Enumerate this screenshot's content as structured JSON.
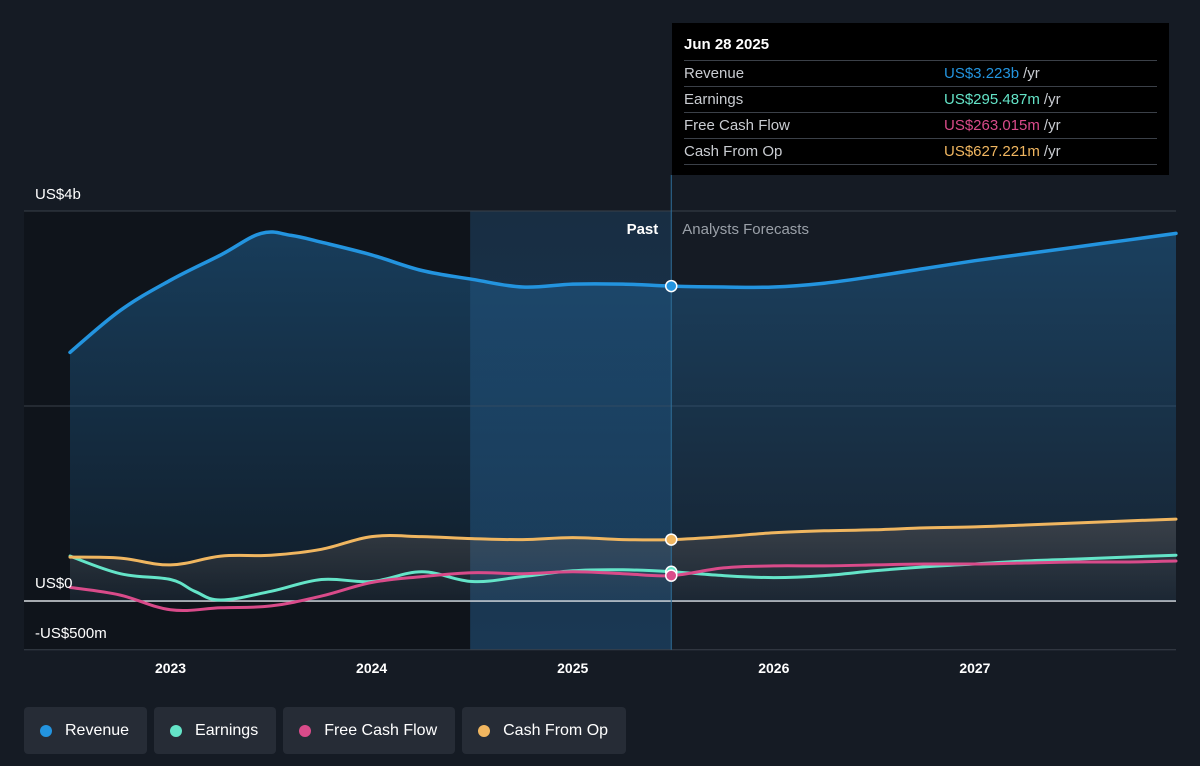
{
  "colors": {
    "background": "#151b24",
    "revenue": "#2394df",
    "earnings": "#64e4c8",
    "free_cash_flow": "#d94b8a",
    "cash_from_op": "#f0b660",
    "past_highlight": "#1b3d5c"
  },
  "tooltip": {
    "date": "Jun 28 2025",
    "rows": [
      {
        "name": "Revenue",
        "value": "US$3.223b",
        "unit": "/yr"
      },
      {
        "name": "Earnings",
        "value": "US$295.487m",
        "unit": "/yr"
      },
      {
        "name": "Free Cash Flow",
        "value": "US$263.015m",
        "unit": "/yr"
      },
      {
        "name": "Cash From Op",
        "value": "US$627.221m",
        "unit": "/yr"
      }
    ]
  },
  "legend": [
    {
      "label": "Revenue",
      "color": "#2394df"
    },
    {
      "label": "Earnings",
      "color": "#64e4c8"
    },
    {
      "label": "Free Cash Flow",
      "color": "#d94b8a"
    },
    {
      "label": "Cash From Op",
      "color": "#f0b660"
    }
  ],
  "chart_data": {
    "type": "line",
    "title": "",
    "xlabel": "",
    "ylabel": "",
    "y_unit": "US$ billions",
    "ylim": [
      -0.5,
      4.0
    ],
    "xlim": [
      2022.77,
      2027.99
    ],
    "y_tick_labels": [
      {
        "value": 4.0,
        "label": "US$4b"
      },
      {
        "value": 0.0,
        "label": "US$0"
      },
      {
        "value": -0.5,
        "label": "-US$500m"
      }
    ],
    "gridlines": [
      4.0,
      2.0,
      0.0,
      -0.5
    ],
    "x_ticks": [
      {
        "value": 2023.0,
        "label": "2023"
      },
      {
        "value": 2024.0,
        "label": "2024"
      },
      {
        "value": 2025.0,
        "label": "2025"
      },
      {
        "value": 2026.0,
        "label": "2026"
      },
      {
        "value": 2027.0,
        "label": "2027"
      }
    ],
    "past_region": {
      "start": 2024.49,
      "end": 2025.49,
      "label": "Past"
    },
    "forecast_label": "Analysts Forecasts",
    "marker_x": 2025.49,
    "series": [
      {
        "name": "Revenue",
        "key": "revenue",
        "x": [
          2022.5,
          2022.75,
          2023.0,
          2023.25,
          2023.45,
          2023.6,
          2023.75,
          2024.0,
          2024.25,
          2024.5,
          2024.75,
          2025.0,
          2025.25,
          2025.49,
          2025.75,
          2026.0,
          2026.25,
          2026.5,
          2026.75,
          2027.0,
          2027.25,
          2027.5,
          2027.75,
          2028.0
        ],
        "y": [
          2.55,
          2.98,
          3.29,
          3.55,
          3.77,
          3.75,
          3.68,
          3.55,
          3.39,
          3.3,
          3.22,
          3.25,
          3.25,
          3.23,
          3.22,
          3.22,
          3.26,
          3.33,
          3.41,
          3.49,
          3.56,
          3.63,
          3.7,
          3.77
        ]
      },
      {
        "name": "Earnings",
        "key": "earnings",
        "x": [
          2022.5,
          2022.75,
          2023.0,
          2023.12,
          2023.25,
          2023.5,
          2023.75,
          2024.0,
          2024.25,
          2024.5,
          2024.75,
          2025.0,
          2025.25,
          2025.49,
          2025.75,
          2026.0,
          2026.25,
          2026.5,
          2026.75,
          2027.0,
          2027.25,
          2027.5,
          2027.75,
          2028.0
        ],
        "y": [
          0.46,
          0.28,
          0.22,
          0.1,
          0.01,
          0.1,
          0.22,
          0.2,
          0.3,
          0.2,
          0.25,
          0.31,
          0.32,
          0.3,
          0.26,
          0.24,
          0.26,
          0.31,
          0.35,
          0.38,
          0.41,
          0.43,
          0.45,
          0.47
        ]
      },
      {
        "name": "Free Cash Flow",
        "key": "free_cash_flow",
        "x": [
          2022.5,
          2022.75,
          2023.0,
          2023.25,
          2023.5,
          2023.75,
          2024.0,
          2024.25,
          2024.5,
          2024.75,
          2025.0,
          2025.25,
          2025.49,
          2025.75,
          2026.0,
          2026.25,
          2026.5,
          2026.75,
          2027.0,
          2027.25,
          2027.5,
          2027.75,
          2028.0
        ],
        "y": [
          0.14,
          0.06,
          -0.09,
          -0.07,
          -0.05,
          0.05,
          0.19,
          0.25,
          0.29,
          0.28,
          0.3,
          0.28,
          0.26,
          0.34,
          0.36,
          0.36,
          0.37,
          0.38,
          0.38,
          0.39,
          0.4,
          0.4,
          0.41
        ]
      },
      {
        "name": "Cash From Op",
        "key": "cash_from_op",
        "x": [
          2022.5,
          2022.75,
          2023.0,
          2023.25,
          2023.5,
          2023.75,
          2024.0,
          2024.25,
          2024.5,
          2024.75,
          2025.0,
          2025.25,
          2025.49,
          2025.75,
          2026.0,
          2026.25,
          2026.5,
          2026.75,
          2027.0,
          2027.25,
          2027.5,
          2027.75,
          2028.0
        ],
        "y": [
          0.45,
          0.44,
          0.37,
          0.46,
          0.47,
          0.53,
          0.66,
          0.66,
          0.64,
          0.63,
          0.65,
          0.63,
          0.63,
          0.66,
          0.7,
          0.72,
          0.73,
          0.75,
          0.76,
          0.78,
          0.8,
          0.82,
          0.84
        ]
      }
    ]
  }
}
